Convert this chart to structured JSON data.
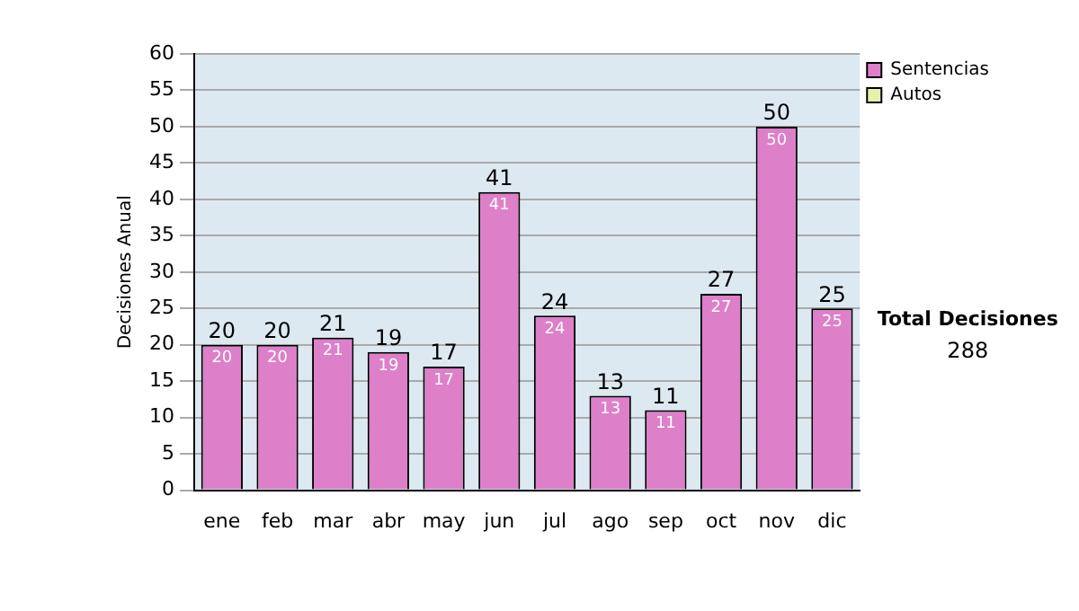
{
  "chart_data": {
    "type": "bar",
    "ylabel": "Decisiones Anual",
    "categories": [
      "ene",
      "feb",
      "mar",
      "abr",
      "may",
      "jun",
      "jul",
      "ago",
      "sep",
      "oct",
      "nov",
      "dic"
    ],
    "series": [
      {
        "name": "Sentencias",
        "color": "#dd7fc9",
        "values": [
          20,
          20,
          21,
          19,
          17,
          41,
          24,
          13,
          11,
          27,
          50,
          25
        ],
        "value_labels": [
          "20",
          "20",
          "21",
          "19",
          "17",
          "41",
          "24",
          "13",
          "11",
          "27",
          "50",
          "25"
        ]
      },
      {
        "name": "Autos",
        "color": "#e6f2a8",
        "values": [
          0,
          0,
          0,
          0,
          0,
          0,
          0,
          0,
          0,
          0,
          0,
          0
        ]
      }
    ],
    "stacked": true,
    "totals": [
      "20",
      "20",
      "21",
      "19",
      "17",
      "41",
      "24",
      "13",
      "11",
      "27",
      "50",
      "25"
    ],
    "ylim": [
      0,
      60
    ],
    "yticks": [
      0,
      5,
      10,
      15,
      20,
      25,
      30,
      35,
      40,
      45,
      50,
      55,
      60
    ],
    "grid": "y",
    "legend": "right",
    "annotations": [
      "Total Decisiones",
      "288"
    ]
  }
}
